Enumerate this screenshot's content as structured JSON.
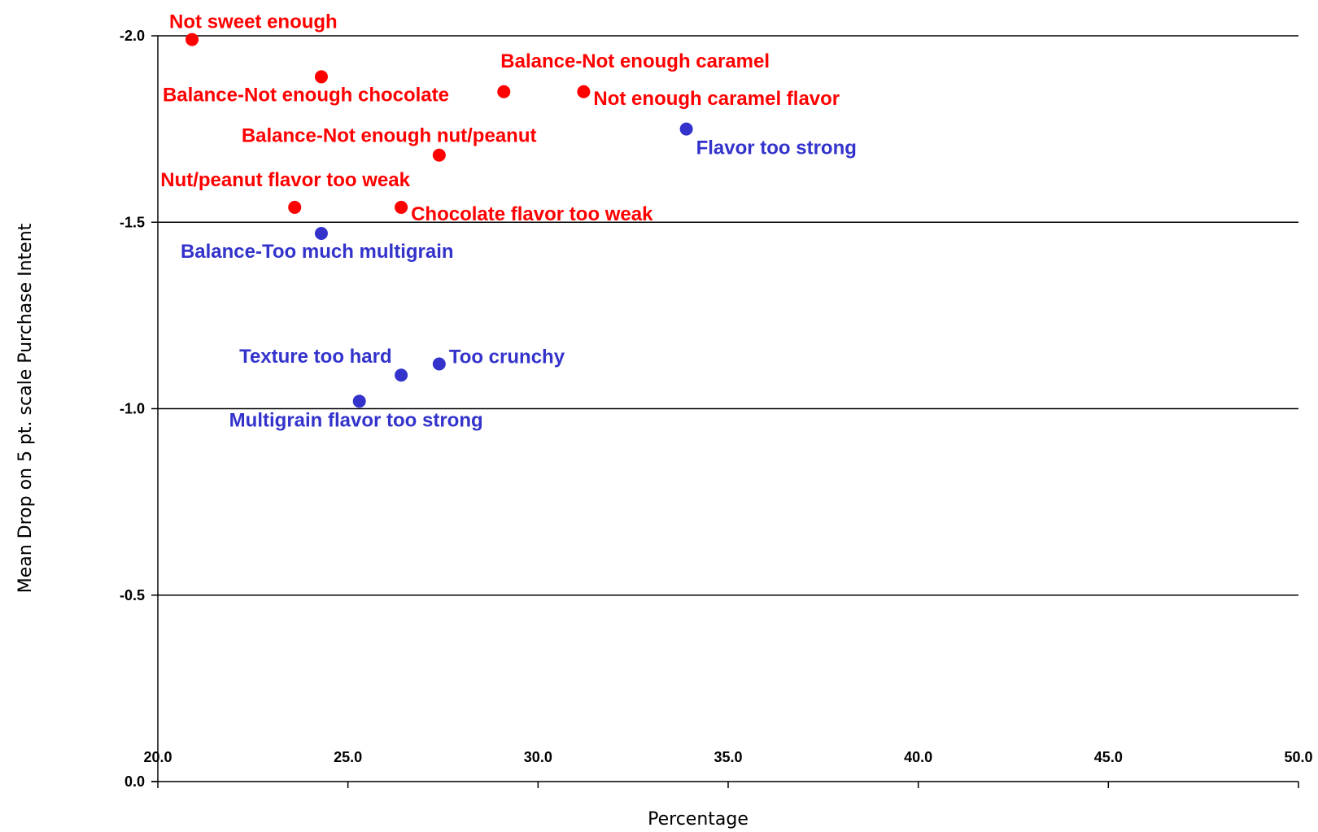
{
  "chart_data": {
    "type": "scatter",
    "xlabel": "Percentage",
    "ylabel": "Mean Drop on 5 pt. scale Purchase Intent",
    "xlim": [
      20.0,
      50.0
    ],
    "ylim": [
      0.0,
      -2.0
    ],
    "x_ticks": [
      "20.0",
      "25.0",
      "30.0",
      "35.0",
      "40.0",
      "45.0",
      "50.0"
    ],
    "y_ticks": [
      "0.0",
      "-0.5",
      "-1.0",
      "-1.5",
      "-2.0"
    ],
    "grid": "horizontal",
    "colors": {
      "red": "#ff0000",
      "blue": "#3333cc"
    },
    "points": [
      {
        "label": "Not sweet enough",
        "x": 20.9,
        "y": -1.99,
        "color": "red"
      },
      {
        "label": "Balance-Not enough chocolate",
        "x": 24.3,
        "y": -1.89,
        "color": "red"
      },
      {
        "label": "Balance-Not enough caramel",
        "x": 29.1,
        "y": -1.85,
        "color": "red"
      },
      {
        "label": "Not enough caramel flavor",
        "x": 31.2,
        "y": -1.85,
        "color": "red"
      },
      {
        "label": "Balance-Not enough nut/peanut",
        "x": 27.4,
        "y": -1.68,
        "color": "red"
      },
      {
        "label": "Nut/peanut flavor too weak",
        "x": 23.6,
        "y": -1.54,
        "color": "red"
      },
      {
        "label": "Chocolate flavor too weak",
        "x": 26.4,
        "y": -1.54,
        "color": "red"
      },
      {
        "label": "Flavor too strong",
        "x": 33.9,
        "y": -1.75,
        "color": "blue"
      },
      {
        "label": "Balance-Too much multigrain",
        "x": 24.3,
        "y": -1.47,
        "color": "blue"
      },
      {
        "label": "Texture too hard",
        "x": 26.4,
        "y": -1.09,
        "color": "blue"
      },
      {
        "label": "Too crunchy",
        "x": 27.4,
        "y": -1.12,
        "color": "blue"
      },
      {
        "label": "Multigrain flavor too strong",
        "x": 25.3,
        "y": -1.02,
        "color": "blue"
      }
    ]
  }
}
